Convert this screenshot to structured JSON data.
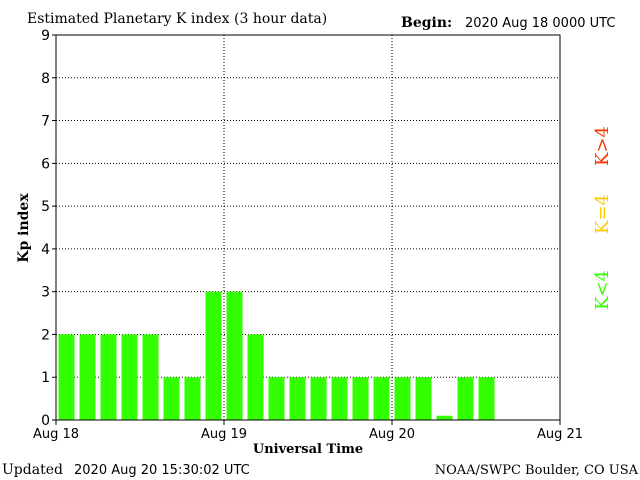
{
  "header": {
    "title": "Estimated Planetary K index (3 hour data)",
    "begin_label": "Begin:",
    "begin_value": "2020 Aug 18 0000 UTC"
  },
  "footer": {
    "updated_label": "Updated",
    "updated_value": "2020 Aug 20 15:30:02 UTC",
    "source": "NOAA/SWPC Boulder, CO USA"
  },
  "legend": {
    "items": [
      {
        "label": "K<4",
        "color": "#33ff00"
      },
      {
        "label": "K=4",
        "color": "#ffcc00"
      },
      {
        "label": "K>4",
        "color": "#ff3300"
      }
    ]
  },
  "chart_data": {
    "type": "bar",
    "title": "Estimated Planetary K index (3 hour data)",
    "xlabel": "Universal Time",
    "ylabel": "Kp index",
    "ylim": [
      0,
      9
    ],
    "yticks": [
      0,
      1,
      2,
      3,
      4,
      5,
      6,
      7,
      8,
      9
    ],
    "xticks": [
      "Aug 18",
      "Aug 19",
      "Aug 20",
      "Aug 21"
    ],
    "total_slots": 24,
    "grid": true,
    "bar_color": "#33ff00",
    "values": [
      2,
      2,
      2,
      2,
      2,
      1,
      1,
      3,
      3,
      2,
      1,
      1,
      1,
      1,
      1,
      1,
      1,
      1,
      0.1,
      1,
      1
    ]
  }
}
